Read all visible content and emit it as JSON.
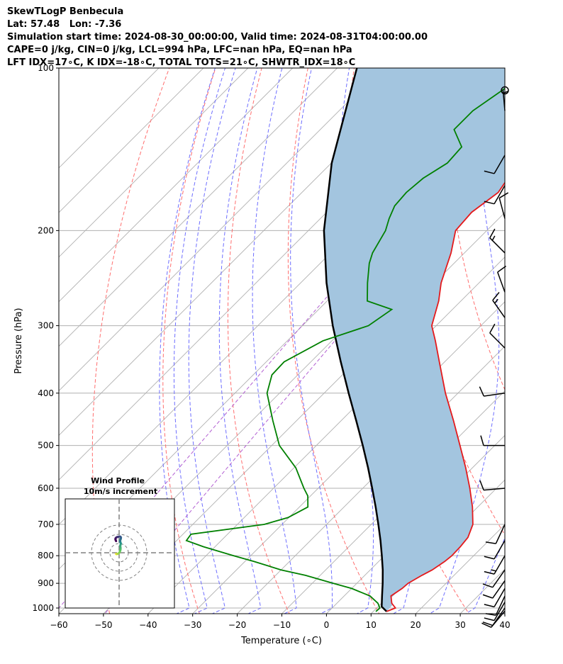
{
  "header": {
    "line1": "SkewTLogP Benbecula",
    "line2": "Lat: 57.48   Lon: -7.36",
    "line3": "Simulation start time: 2024-08-30_00:00:00, Valid time: 2024-08-31T04:00:00.00",
    "line4": "CAPE=0 j/kg, CIN=0 j/kg, LCL=994 hPa, LFC=nan hPa, EQ=nan hPa",
    "line5": "LFT IDX=17∘C, K IDX=-18∘C, TOTAL TOTS=21∘C, SHWTR_IDX=18∘C"
  },
  "colors": {
    "temperature": "#e41a1c",
    "dewpoint": "#008000",
    "parcel": "#000000",
    "shade": "#a3c5df",
    "dry_adiabat": "#ff6e6e",
    "moist_adiabat": "#6e6eff",
    "mixing_ratio": "#b25fd2",
    "isotherm": "#b0b0b0",
    "barb": "#000000"
  },
  "chart_data": {
    "type": "skewt",
    "xlabel": "Temperature (∘C)",
    "ylabel": "Pressure (hPa)",
    "xlim": [
      -60,
      40
    ],
    "ylim": [
      1050,
      100
    ],
    "x_ticks": [
      "−60",
      "−50",
      "−40",
      "−30",
      "−20",
      "−10",
      "0",
      "10",
      "20",
      "30",
      "40"
    ],
    "x_tick_values": [
      -60,
      -50,
      -40,
      -30,
      -20,
      -10,
      0,
      10,
      20,
      30,
      40
    ],
    "y_ticks": [
      "100",
      "200",
      "300",
      "400",
      "500",
      "600",
      "700",
      "800",
      "900",
      "1000"
    ],
    "y_tick_values": [
      100,
      200,
      300,
      400,
      500,
      600,
      700,
      800,
      900,
      1000
    ],
    "grid": true,
    "skew_deg": 45,
    "temperature": {
      "p": [
        1015,
        1000,
        980,
        950,
        920,
        900,
        870,
        850,
        820,
        800,
        770,
        740,
        700,
        650,
        600,
        550,
        500,
        450,
        400,
        350,
        320,
        300,
        270,
        250,
        220,
        200,
        185,
        170,
        160,
        150,
        140,
        130,
        120,
        110,
        100
      ],
      "t": [
        13.0,
        14.2,
        12.3,
        10.5,
        11.3,
        11.5,
        12.8,
        13.9,
        14.8,
        15.1,
        15.0,
        14.6,
        12.8,
        8.8,
        4.0,
        -1.5,
        -7.8,
        -14.8,
        -22.8,
        -31.2,
        -36.8,
        -41.0,
        -45.0,
        -48.5,
        -53.0,
        -57.0,
        -57.5,
        -56.0,
        -57.0,
        -58.3,
        -59.7,
        -60.5,
        -59.6,
        -58.8,
        -58.5
      ]
    },
    "dewpoint": {
      "p": [
        1015,
        1000,
        980,
        950,
        920,
        900,
        870,
        850,
        820,
        800,
        770,
        750,
        730,
        700,
        680,
        650,
        620,
        600,
        550,
        500,
        450,
        400,
        370,
        350,
        320,
        300,
        280,
        270,
        250,
        230,
        220,
        200,
        190,
        180,
        170,
        160,
        150,
        140,
        130,
        120,
        110,
        100
      ],
      "t": [
        10.6,
        10.7,
        9.2,
        5.8,
        0.0,
        -5.3,
        -13.3,
        -20.0,
        -28.0,
        -33.8,
        -42.6,
        -47.8,
        -48.2,
        -34.0,
        -30.2,
        -28.1,
        -30.6,
        -33.2,
        -39.6,
        -48.3,
        -55.3,
        -62.8,
        -65.8,
        -66.0,
        -62.0,
        -55.2,
        -53.6,
        -61.0,
        -65.0,
        -69.0,
        -70.6,
        -72.7,
        -74.6,
        -76.2,
        -76.6,
        -76.0,
        -74.0,
        -74.4,
        -80.0,
        -80.0,
        -78.0,
        -76.0
      ]
    },
    "parcel": {
      "p": [
        1015,
        994,
        950,
        900,
        850,
        800,
        750,
        700,
        650,
        600,
        550,
        500,
        450,
        400,
        350,
        300,
        250,
        200,
        150,
        100
      ],
      "t": [
        13.0,
        10.8,
        8.5,
        5.8,
        2.8,
        -0.6,
        -4.3,
        -8.4,
        -12.9,
        -17.9,
        -23.4,
        -29.6,
        -36.6,
        -44.5,
        -53.3,
        -63.2,
        -74.2,
        -86.5,
        -99.9,
        -115.6
      ]
    },
    "dry_adiabat_theta_k": [
      223,
      243,
      263,
      283,
      303,
      323,
      343,
      363,
      383,
      403,
      423,
      443,
      463
    ],
    "moist_adiabat_theta_w_c": [
      -32,
      -28,
      -24,
      -16,
      -8,
      0,
      8,
      16,
      24,
      32,
      40
    ],
    "mixing_ratio_gkg": [
      0.01,
      0.04
    ],
    "wind_barbs": [
      {
        "p": 1013,
        "speed_kt": 8,
        "dir_deg": 220
      },
      {
        "p": 1000,
        "speed_kt": 8,
        "dir_deg": 215
      },
      {
        "p": 975,
        "speed_kt": 10,
        "dir_deg": 210
      },
      {
        "p": 950,
        "speed_kt": 10,
        "dir_deg": 205
      },
      {
        "p": 920,
        "speed_kt": 10,
        "dir_deg": 210
      },
      {
        "p": 890,
        "speed_kt": 10,
        "dir_deg": 215
      },
      {
        "p": 850,
        "speed_kt": 12,
        "dir_deg": 215
      },
      {
        "p": 800,
        "speed_kt": 15,
        "dir_deg": 210
      },
      {
        "p": 750,
        "speed_kt": 12,
        "dir_deg": 210
      },
      {
        "p": 700,
        "speed_kt": 12,
        "dir_deg": 205
      },
      {
        "p": 600,
        "speed_kt": 10,
        "dir_deg": 265
      },
      {
        "p": 500,
        "speed_kt": 10,
        "dir_deg": 270
      },
      {
        "p": 400,
        "speed_kt": 10,
        "dir_deg": 262
      },
      {
        "p": 330,
        "speed_kt": 12,
        "dir_deg": 315
      },
      {
        "p": 290,
        "speed_kt": 15,
        "dir_deg": 325
      },
      {
        "p": 260,
        "speed_kt": 10,
        "dir_deg": 340
      },
      {
        "p": 220,
        "speed_kt": 15,
        "dir_deg": 315
      },
      {
        "p": 190,
        "speed_kt": 10,
        "dir_deg": 345
      },
      {
        "p": 165,
        "speed_kt": 10,
        "dir_deg": 210
      },
      {
        "p": 145,
        "speed_kt": 10,
        "dir_deg": 210
      },
      {
        "p": 120,
        "speed_kt": 5,
        "dir_deg": 355
      },
      {
        "p": 110,
        "speed_kt": 0,
        "dir_deg": 0
      }
    ],
    "hodograph": {
      "title": "Wind Profile",
      "subtitle": "10m/s increment",
      "rings_ms": [
        10,
        20,
        30
      ],
      "colormap": [
        "#440154",
        "#3b528b",
        "#21918c",
        "#5ec962",
        "#fde725"
      ],
      "u": [
        -3.3,
        -2.8,
        -2.2,
        -1.6,
        -0.8,
        0.0,
        0.6,
        1.2,
        1.5,
        1.6,
        1.4,
        1.2,
        1.6,
        1.8,
        1.5,
        1.2,
        1.0,
        1.4,
        1.8,
        2.0,
        1.5,
        0.6,
        -0.3,
        -1.2,
        -2.3,
        -3.2,
        -3.9,
        -4.0,
        -3.7,
        -3.3
      ],
      "v": [
        -1.3,
        -1.5,
        -1.4,
        -1.2,
        -0.8,
        -0.2,
        0.8,
        2.2,
        3.6,
        5.0,
        6.2,
        7.6,
        8.8,
        10.0,
        11.2,
        12.0,
        12.8,
        14.0,
        15.2,
        16.4,
        17.4,
        17.7,
        17.5,
        17.2,
        17.0,
        16.4,
        15.6,
        14.6,
        13.6,
        12.6
      ]
    }
  }
}
